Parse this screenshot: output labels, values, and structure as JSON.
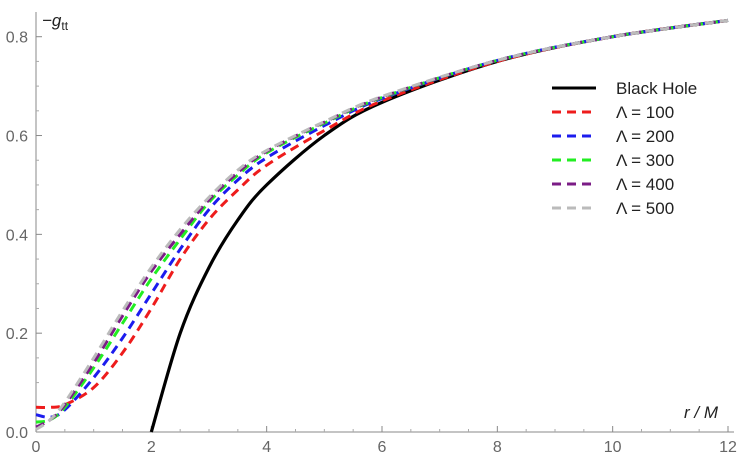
{
  "chart_data": {
    "type": "line",
    "xlabel": "r / M",
    "ylabel_main": "−g",
    "ylabel_sub": "tt",
    "xlim": [
      0,
      12
    ],
    "ylim": [
      0,
      0.85
    ],
    "x_ticks": [
      0,
      2,
      4,
      6,
      8,
      10,
      12
    ],
    "y_ticks": [
      0.0,
      0.2,
      0.4,
      0.6,
      0.8
    ],
    "y_tick_labels": [
      "0.0",
      "0.2",
      "0.4",
      "0.6",
      "0.8"
    ],
    "x_tick_labels": [
      "0",
      "2",
      "4",
      "6",
      "8",
      "10",
      "12"
    ],
    "grid": false,
    "legend_position": "right",
    "series": [
      {
        "name": "Black Hole",
        "color": "#000000",
        "style": "solid",
        "x": [
          2.0,
          2.5,
          3.0,
          3.5,
          4.0,
          5.0,
          6.0,
          8.0,
          10.0,
          12.0
        ],
        "y": [
          0.0,
          0.2,
          0.333,
          0.429,
          0.5,
          0.6,
          0.667,
          0.75,
          0.8,
          0.833
        ]
      },
      {
        "name": "Λ = 100",
        "color": "#ee1c1c",
        "style": "dashed",
        "x": [
          0,
          0.25,
          0.5,
          1.0,
          1.5,
          2.0,
          2.5,
          3.0,
          3.5,
          4.0,
          5.0,
          6.0,
          8.0,
          10.0,
          12.0
        ],
        "y": [
          0.05,
          0.05,
          0.055,
          0.09,
          0.16,
          0.25,
          0.35,
          0.43,
          0.49,
          0.54,
          0.61,
          0.67,
          0.75,
          0.8,
          0.833
        ]
      },
      {
        "name": "Λ = 200",
        "color": "#1c1cee",
        "style": "dashed",
        "x": [
          0,
          0.25,
          0.5,
          1.0,
          1.5,
          2.0,
          2.5,
          3.0,
          3.5,
          4.0,
          5.0,
          6.0,
          8.0,
          10.0,
          12.0
        ],
        "y": [
          0.035,
          0.03,
          0.045,
          0.11,
          0.19,
          0.28,
          0.37,
          0.45,
          0.51,
          0.555,
          0.62,
          0.675,
          0.752,
          0.8,
          0.833
        ]
      },
      {
        "name": "Λ = 300",
        "color": "#22ee22",
        "style": "dashed",
        "x": [
          0,
          0.25,
          0.5,
          1.0,
          1.5,
          2.0,
          2.5,
          3.0,
          3.5,
          4.0,
          5.0,
          6.0,
          8.0,
          10.0,
          12.0
        ],
        "y": [
          0.02,
          0.025,
          0.05,
          0.13,
          0.22,
          0.31,
          0.39,
          0.465,
          0.52,
          0.565,
          0.625,
          0.677,
          0.752,
          0.8,
          0.833
        ]
      },
      {
        "name": "Λ = 400",
        "color": "#7b1c86",
        "style": "dashed",
        "x": [
          0,
          0.25,
          0.5,
          1.0,
          1.5,
          2.0,
          2.5,
          3.0,
          3.5,
          4.0,
          5.0,
          6.0,
          8.0,
          10.0,
          12.0
        ],
        "y": [
          0.01,
          0.025,
          0.055,
          0.14,
          0.235,
          0.325,
          0.4,
          0.47,
          0.525,
          0.568,
          0.627,
          0.678,
          0.752,
          0.8,
          0.833
        ]
      },
      {
        "name": "Λ = 500",
        "color": "#bbbbbb",
        "style": "dashed",
        "x": [
          0,
          0.25,
          0.5,
          1.0,
          1.5,
          2.0,
          2.5,
          3.0,
          3.5,
          4.0,
          5.0,
          6.0,
          8.0,
          10.0,
          12.0
        ],
        "y": [
          0.005,
          0.025,
          0.06,
          0.15,
          0.245,
          0.333,
          0.41,
          0.475,
          0.53,
          0.57,
          0.628,
          0.679,
          0.752,
          0.8,
          0.833
        ]
      }
    ]
  }
}
